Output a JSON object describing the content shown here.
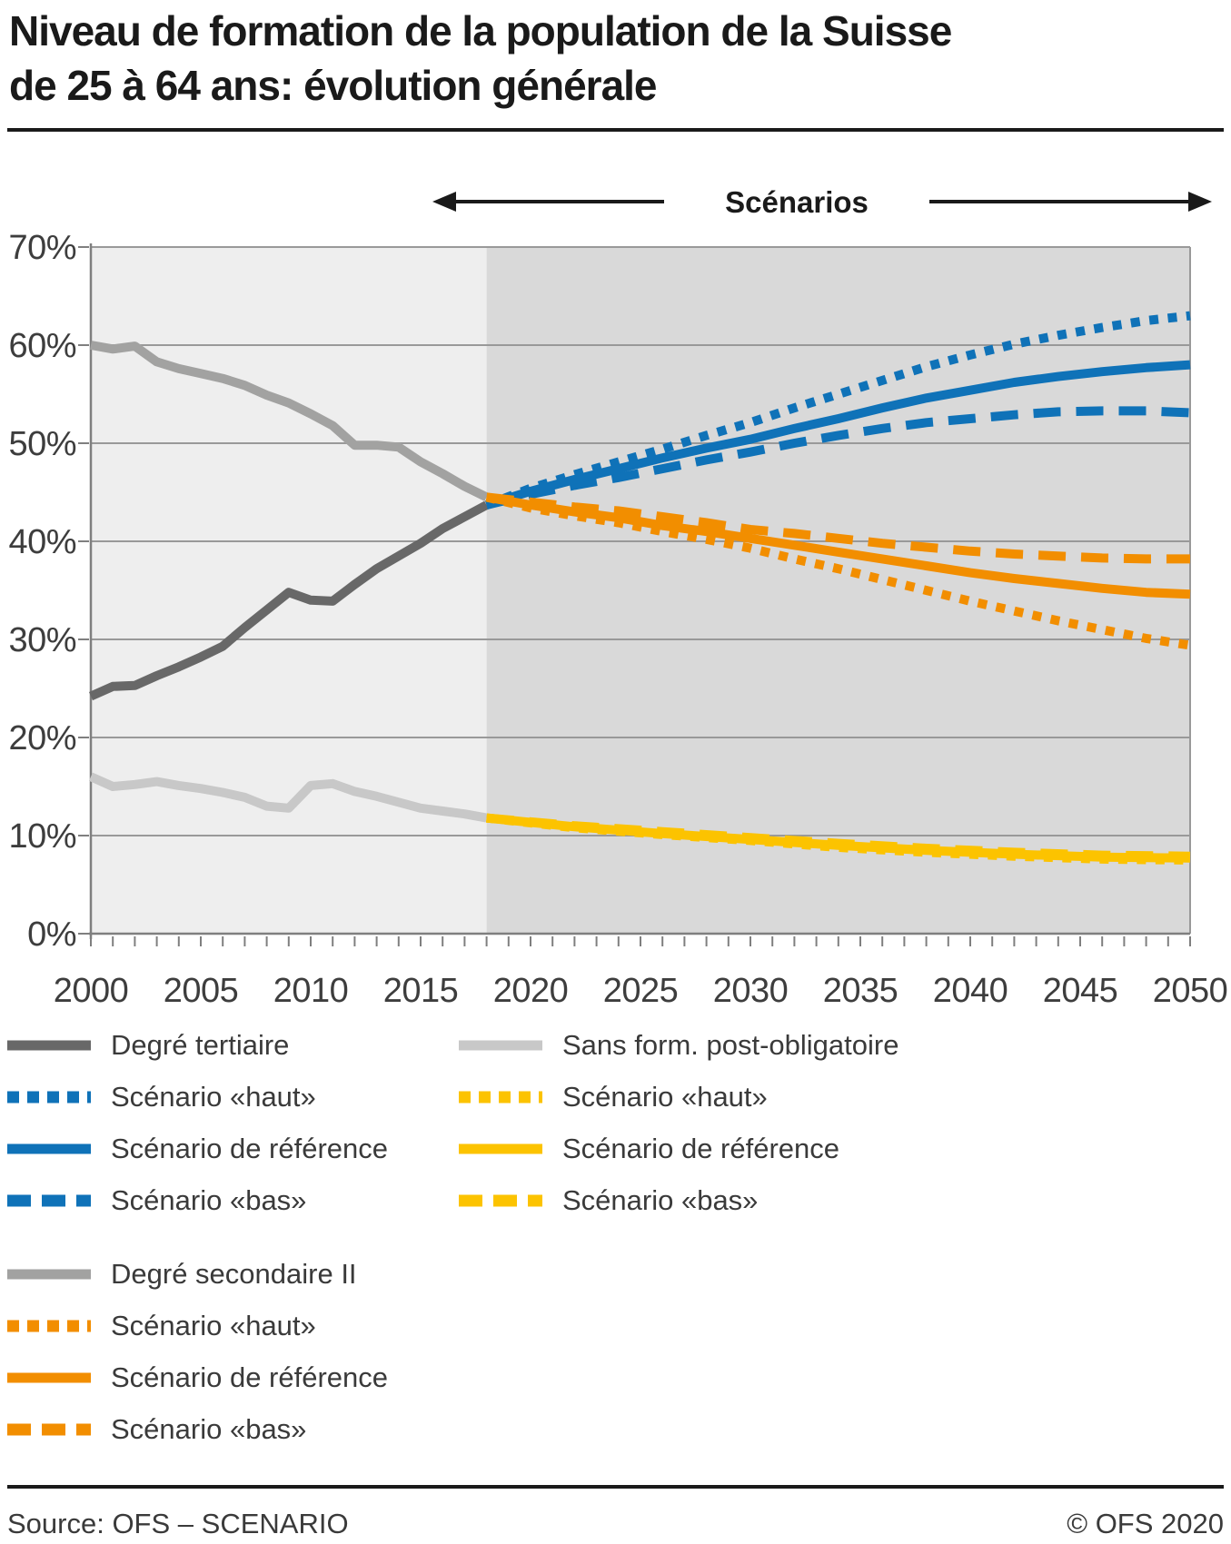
{
  "title": {
    "line1": "Niveau de formation de la population de la Suisse",
    "line2": "de 25 à 64 ans: évolution générale"
  },
  "scenarios_header": {
    "label": "Scénarios"
  },
  "footer": {
    "source": "Source: OFS – SCENARIO",
    "copyright": "© OFS 2020"
  },
  "colors": {
    "blue": "#0f72b8",
    "orange": "#f28e00",
    "yellow": "#fcc300",
    "gray_dark": "#686868",
    "gray_mid": "#a2a2a1",
    "gray_light": "#c8c8c8",
    "bg_historical": "#eeeeee",
    "bg_scenario": "#d9d9d9",
    "gridline": "#999999",
    "axis": "#7f7f7f",
    "text_dark": "#1a1a1a",
    "text_axis": "#3d3d3d"
  },
  "chart_data": {
    "type": "line",
    "title": "Niveau de formation de la population de la Suisse de 25 à 64 ans: évolution générale",
    "xlabel": "",
    "ylabel": "",
    "x_axis": {
      "range": [
        2000,
        2050
      ],
      "major_ticks": [
        2000,
        2005,
        2010,
        2015,
        2020,
        2025,
        2030,
        2035,
        2040,
        2045,
        2050
      ],
      "minor_step": 1
    },
    "y_axis": {
      "range": [
        0,
        70
      ],
      "tick_labels": [
        "0%",
        "10%",
        "20%",
        "30%",
        "40%",
        "50%",
        "60%",
        "70%"
      ],
      "tick_values": [
        0,
        10,
        20,
        30,
        40,
        50,
        60,
        70
      ]
    },
    "regions": {
      "historical": [
        2000,
        2018
      ],
      "scenario": [
        2018,
        2050
      ],
      "scenario_label": "Scénarios"
    },
    "grid": true,
    "legend_position": "below",
    "series": [
      {
        "id": "degre-tertiaire",
        "name": "Degré tertiaire",
        "color": "#686868",
        "style": "solid",
        "period": "historical",
        "points": [
          [
            2000,
            24.2
          ],
          [
            2001,
            25.2
          ],
          [
            2002,
            25.3
          ],
          [
            2003,
            26.3
          ],
          [
            2004,
            27.2
          ],
          [
            2005,
            28.2
          ],
          [
            2006,
            29.3
          ],
          [
            2007,
            31.2
          ],
          [
            2008,
            33.0
          ],
          [
            2009,
            34.8
          ],
          [
            2010,
            34.0
          ],
          [
            2011,
            33.9
          ],
          [
            2012,
            35.6
          ],
          [
            2013,
            37.2
          ],
          [
            2014,
            38.5
          ],
          [
            2015,
            39.8
          ],
          [
            2016,
            41.3
          ],
          [
            2017,
            42.5
          ],
          [
            2018,
            43.7
          ]
        ]
      },
      {
        "id": "degre-secondaire-ii",
        "name": "Degré secondaire II",
        "color": "#a2a2a1",
        "style": "solid",
        "period": "historical",
        "points": [
          [
            2000,
            60.0
          ],
          [
            2001,
            59.6
          ],
          [
            2002,
            59.9
          ],
          [
            2003,
            58.3
          ],
          [
            2004,
            57.6
          ],
          [
            2005,
            57.1
          ],
          [
            2006,
            56.6
          ],
          [
            2007,
            55.9
          ],
          [
            2008,
            54.9
          ],
          [
            2009,
            54.1
          ],
          [
            2010,
            53.0
          ],
          [
            2011,
            51.8
          ],
          [
            2012,
            49.8
          ],
          [
            2013,
            49.8
          ],
          [
            2014,
            49.6
          ],
          [
            2015,
            48.1
          ],
          [
            2016,
            46.9
          ],
          [
            2017,
            45.6
          ],
          [
            2018,
            44.5
          ]
        ]
      },
      {
        "id": "sans-formation",
        "name": "Sans form. post-obligatoire",
        "color": "#c8c8c8",
        "style": "solid",
        "period": "historical",
        "points": [
          [
            2000,
            16.0
          ],
          [
            2001,
            15.0
          ],
          [
            2002,
            15.2
          ],
          [
            2003,
            15.5
          ],
          [
            2004,
            15.1
          ],
          [
            2005,
            14.8
          ],
          [
            2006,
            14.4
          ],
          [
            2007,
            13.9
          ],
          [
            2008,
            13.0
          ],
          [
            2009,
            12.8
          ],
          [
            2010,
            15.1
          ],
          [
            2011,
            15.3
          ],
          [
            2012,
            14.5
          ],
          [
            2013,
            14.0
          ],
          [
            2014,
            13.4
          ],
          [
            2015,
            12.8
          ],
          [
            2016,
            12.5
          ],
          [
            2017,
            12.2
          ],
          [
            2018,
            11.8
          ]
        ]
      },
      {
        "id": "tertiaire-haut",
        "name": "Degré tertiaire – Scénario «haut»",
        "color": "#0f72b8",
        "style": "dotted",
        "period": "scenario",
        "points": [
          [
            2018,
            43.7
          ],
          [
            2020,
            45.4
          ],
          [
            2022,
            46.8
          ],
          [
            2024,
            48.1
          ],
          [
            2026,
            49.4
          ],
          [
            2028,
            50.8
          ],
          [
            2030,
            52.1
          ],
          [
            2032,
            53.6
          ],
          [
            2034,
            55.0
          ],
          [
            2036,
            56.4
          ],
          [
            2038,
            57.8
          ],
          [
            2040,
            59.0
          ],
          [
            2042,
            60.1
          ],
          [
            2044,
            61.0
          ],
          [
            2046,
            61.8
          ],
          [
            2048,
            62.5
          ],
          [
            2050,
            63.0
          ]
        ]
      },
      {
        "id": "tertiaire-bas",
        "name": "Degré tertiaire – Scénario «bas»",
        "color": "#0f72b8",
        "style": "dashed",
        "period": "scenario",
        "points": [
          [
            2018,
            43.7
          ],
          [
            2020,
            44.8
          ],
          [
            2022,
            45.7
          ],
          [
            2024,
            46.5
          ],
          [
            2026,
            47.4
          ],
          [
            2028,
            48.3
          ],
          [
            2030,
            49.1
          ],
          [
            2032,
            50.0
          ],
          [
            2034,
            50.8
          ],
          [
            2036,
            51.5
          ],
          [
            2038,
            52.1
          ],
          [
            2040,
            52.5
          ],
          [
            2042,
            52.9
          ],
          [
            2044,
            53.2
          ],
          [
            2046,
            53.3
          ],
          [
            2048,
            53.3
          ],
          [
            2050,
            53.1
          ]
        ]
      },
      {
        "id": "tertiaire-reference",
        "name": "Degré tertiaire – Scénario de référence",
        "color": "#0f72b8",
        "style": "solid",
        "period": "scenario",
        "points": [
          [
            2018,
            43.7
          ],
          [
            2020,
            45.1
          ],
          [
            2022,
            46.3
          ],
          [
            2024,
            47.4
          ],
          [
            2026,
            48.5
          ],
          [
            2028,
            49.5
          ],
          [
            2030,
            50.4
          ],
          [
            2032,
            51.5
          ],
          [
            2034,
            52.5
          ],
          [
            2036,
            53.6
          ],
          [
            2038,
            54.6
          ],
          [
            2040,
            55.4
          ],
          [
            2042,
            56.2
          ],
          [
            2044,
            56.8
          ],
          [
            2046,
            57.3
          ],
          [
            2048,
            57.7
          ],
          [
            2050,
            58.0
          ]
        ]
      },
      {
        "id": "secondaire-haut",
        "name": "Degré secondaire II – Scénario «haut»",
        "color": "#f28e00",
        "style": "dotted",
        "period": "scenario",
        "points": [
          [
            2018,
            44.5
          ],
          [
            2020,
            43.4
          ],
          [
            2022,
            42.6
          ],
          [
            2024,
            41.9
          ],
          [
            2026,
            41.0
          ],
          [
            2028,
            40.2
          ],
          [
            2030,
            39.3
          ],
          [
            2032,
            38.2
          ],
          [
            2034,
            37.2
          ],
          [
            2036,
            36.1
          ],
          [
            2038,
            35.0
          ],
          [
            2040,
            33.9
          ],
          [
            2042,
            32.9
          ],
          [
            2044,
            31.9
          ],
          [
            2046,
            31.0
          ],
          [
            2048,
            30.1
          ],
          [
            2050,
            29.4
          ]
        ]
      },
      {
        "id": "secondaire-bas",
        "name": "Degré secondaire II – Scénario «bas»",
        "color": "#f28e00",
        "style": "dashed",
        "period": "scenario",
        "points": [
          [
            2018,
            44.5
          ],
          [
            2020,
            44.0
          ],
          [
            2022,
            43.5
          ],
          [
            2024,
            43.1
          ],
          [
            2026,
            42.5
          ],
          [
            2028,
            41.9
          ],
          [
            2030,
            41.2
          ],
          [
            2032,
            40.8
          ],
          [
            2034,
            40.3
          ],
          [
            2036,
            39.8
          ],
          [
            2038,
            39.4
          ],
          [
            2040,
            39.0
          ],
          [
            2042,
            38.7
          ],
          [
            2044,
            38.5
          ],
          [
            2046,
            38.3
          ],
          [
            2048,
            38.2
          ],
          [
            2050,
            38.2
          ]
        ]
      },
      {
        "id": "secondaire-reference",
        "name": "Degré secondaire II – Scénario de référence",
        "color": "#f28e00",
        "style": "solid",
        "period": "scenario",
        "points": [
          [
            2018,
            44.5
          ],
          [
            2020,
            43.7
          ],
          [
            2022,
            43.0
          ],
          [
            2024,
            42.4
          ],
          [
            2026,
            41.6
          ],
          [
            2028,
            41.0
          ],
          [
            2030,
            40.3
          ],
          [
            2032,
            39.6
          ],
          [
            2034,
            38.9
          ],
          [
            2036,
            38.2
          ],
          [
            2038,
            37.5
          ],
          [
            2040,
            36.8
          ],
          [
            2042,
            36.2
          ],
          [
            2044,
            35.7
          ],
          [
            2046,
            35.2
          ],
          [
            2048,
            34.8
          ],
          [
            2050,
            34.6
          ]
        ]
      },
      {
        "id": "sans-formation-haut",
        "name": "Sans form. post-obligatoire – Scénario «haut»",
        "color": "#fcc300",
        "style": "dotted",
        "period": "scenario",
        "points": [
          [
            2018,
            11.8
          ],
          [
            2022,
            10.8
          ],
          [
            2026,
            10.1
          ],
          [
            2030,
            9.5
          ],
          [
            2034,
            8.8
          ],
          [
            2038,
            8.3
          ],
          [
            2042,
            7.9
          ],
          [
            2046,
            7.6
          ],
          [
            2050,
            7.5
          ]
        ]
      },
      {
        "id": "sans-formation-bas",
        "name": "Sans form. post-obligatoire – Scénario «bas»",
        "color": "#fcc300",
        "style": "dashed",
        "period": "scenario",
        "points": [
          [
            2018,
            11.8
          ],
          [
            2022,
            11.0
          ],
          [
            2026,
            10.4
          ],
          [
            2030,
            9.8
          ],
          [
            2034,
            9.2
          ],
          [
            2038,
            8.7
          ],
          [
            2042,
            8.3
          ],
          [
            2046,
            8.0
          ],
          [
            2050,
            7.9
          ]
        ]
      },
      {
        "id": "sans-formation-reference",
        "name": "Sans form. post-obligatoire – Scénario de référence",
        "color": "#fcc300",
        "style": "solid",
        "period": "scenario",
        "points": [
          [
            2018,
            11.8
          ],
          [
            2022,
            10.9
          ],
          [
            2026,
            10.2
          ],
          [
            2030,
            9.6
          ],
          [
            2034,
            9.0
          ],
          [
            2038,
            8.5
          ],
          [
            2042,
            8.1
          ],
          [
            2046,
            7.8
          ],
          [
            2050,
            7.7
          ]
        ]
      }
    ]
  },
  "legend": {
    "left": [
      {
        "label": "Degré tertiaire",
        "color": "#686868",
        "style": "solid",
        "group": 1
      },
      {
        "label": "Scénario «haut»",
        "color": "#0f72b8",
        "style": "dotted",
        "group": 1
      },
      {
        "label": "Scénario de référence",
        "color": "#0f72b8",
        "style": "solid",
        "group": 1
      },
      {
        "label": "Scénario «bas»",
        "color": "#0f72b8",
        "style": "dashed",
        "group": 1
      },
      {
        "label": "Degré secondaire II",
        "color": "#a2a2a1",
        "style": "solid",
        "group": 2
      },
      {
        "label": "Scénario «haut»",
        "color": "#f28e00",
        "style": "dotted",
        "group": 2
      },
      {
        "label": "Scénario de référence",
        "color": "#f28e00",
        "style": "solid",
        "group": 2
      },
      {
        "label": "Scénario «bas»",
        "color": "#f28e00",
        "style": "dashed",
        "group": 2
      }
    ],
    "right": [
      {
        "label": "Sans form. post-obligatoire",
        "color": "#c8c8c8",
        "style": "solid",
        "group": 1
      },
      {
        "label": "Scénario «haut»",
        "color": "#fcc300",
        "style": "dotted",
        "group": 1
      },
      {
        "label": "Scénario de référence",
        "color": "#fcc300",
        "style": "solid",
        "group": 1
      },
      {
        "label": "Scénario «bas»",
        "color": "#fcc300",
        "style": "dashed",
        "group": 1
      }
    ]
  }
}
